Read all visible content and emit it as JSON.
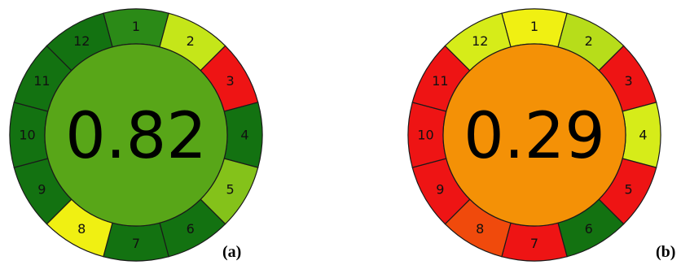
{
  "figure": {
    "panels": [
      {
        "label": "(a)",
        "score": "0.82",
        "center_color": "#58a618",
        "segments": [
          {
            "number": "1",
            "color": "#2b8a17"
          },
          {
            "number": "2",
            "color": "#c5e619"
          },
          {
            "number": "3",
            "color": "#ee1414"
          },
          {
            "number": "4",
            "color": "#137211"
          },
          {
            "number": "5",
            "color": "#84c21a"
          },
          {
            "number": "6",
            "color": "#137211"
          },
          {
            "number": "7",
            "color": "#137211"
          },
          {
            "number": "8",
            "color": "#f0f012"
          },
          {
            "number": "9",
            "color": "#137211"
          },
          {
            "number": "10",
            "color": "#137211"
          },
          {
            "number": "11",
            "color": "#137211"
          },
          {
            "number": "12",
            "color": "#137211"
          }
        ]
      },
      {
        "label": "(b)",
        "score": "0.29",
        "center_color": "#f49106",
        "segments": [
          {
            "number": "1",
            "color": "#f0f012"
          },
          {
            "number": "2",
            "color": "#b7dd1a"
          },
          {
            "number": "3",
            "color": "#ee1414"
          },
          {
            "number": "4",
            "color": "#d6ec19"
          },
          {
            "number": "5",
            "color": "#ee1414"
          },
          {
            "number": "6",
            "color": "#137211"
          },
          {
            "number": "7",
            "color": "#ee1414"
          },
          {
            "number": "8",
            "color": "#f04a0c"
          },
          {
            "number": "9",
            "color": "#ee1414"
          },
          {
            "number": "10",
            "color": "#ee1414"
          },
          {
            "number": "11",
            "color": "#ee1414"
          },
          {
            "number": "12",
            "color": "#d6ec19"
          }
        ]
      }
    ]
  }
}
